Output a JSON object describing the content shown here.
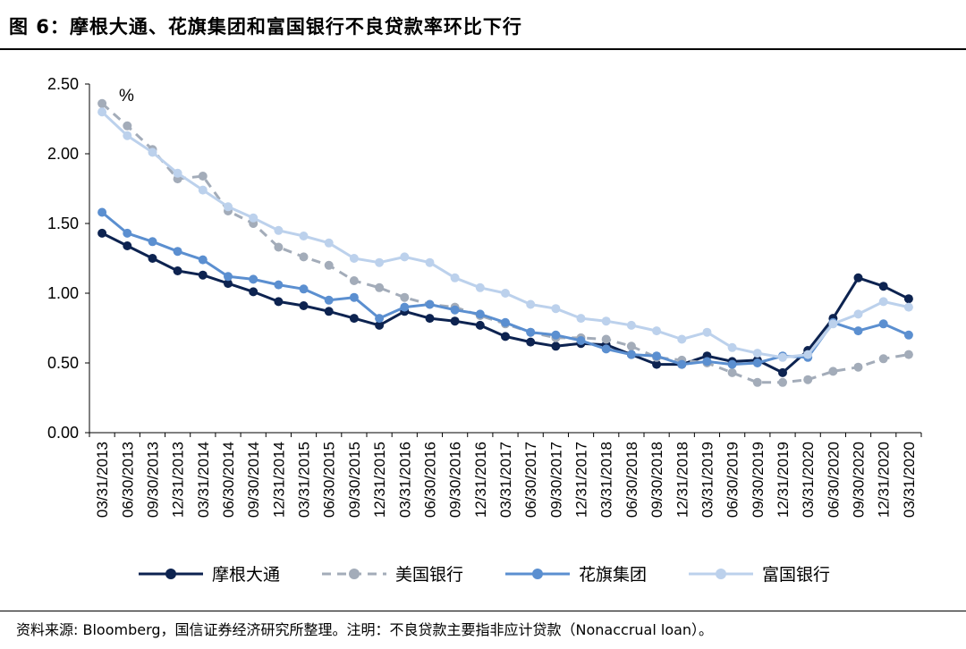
{
  "header": {
    "title": "图 6：摩根大通、花旗集团和富国银行不良贷款率环比下行"
  },
  "footer": {
    "source": "资料来源: Bloomberg，国信证券经济研究所整理。注明：不良贷款主要指非应计贷款（Nonaccrual loan）。"
  },
  "chart_data": {
    "type": "line",
    "unit_label": "%",
    "ylim": [
      0,
      2.5
    ],
    "yticks": [
      "0.00",
      "0.50",
      "1.00",
      "1.50",
      "2.00",
      "2.50"
    ],
    "grid": false,
    "legend_position": "bottom",
    "categories": [
      "03/31/2013",
      "06/30/2013",
      "09/30/2013",
      "12/31/2013",
      "03/31/2014",
      "06/30/2014",
      "09/30/2014",
      "12/31/2014",
      "03/31/2015",
      "06/30/2015",
      "09/30/2015",
      "12/31/2015",
      "03/31/2016",
      "06/30/2016",
      "09/30/2016",
      "12/31/2016",
      "03/31/2017",
      "06/30/2017",
      "09/30/2017",
      "12/31/2017",
      "03/31/2018",
      "06/30/2018",
      "09/30/2018",
      "12/31/2018",
      "03/31/2019",
      "06/30/2019",
      "09/30/2019",
      "12/31/2019",
      "03/31/2020",
      "06/30/2020",
      "09/30/2020",
      "12/31/2020",
      "03/31/2020"
    ],
    "series": [
      {
        "name": "摩根大通",
        "color": "#0d2350",
        "dashed": false,
        "values": [
          1.43,
          1.34,
          1.25,
          1.16,
          1.13,
          1.07,
          1.01,
          0.94,
          0.91,
          0.87,
          0.82,
          0.77,
          0.87,
          0.82,
          0.8,
          0.77,
          0.69,
          0.65,
          0.62,
          0.64,
          0.63,
          0.56,
          0.49,
          0.49,
          0.55,
          0.51,
          0.52,
          0.43,
          0.59,
          0.82,
          1.11,
          1.05,
          0.96
        ]
      },
      {
        "name": "美国银行",
        "color": "#a3acb9",
        "dashed": true,
        "values": [
          2.36,
          2.2,
          2.03,
          1.82,
          1.84,
          1.59,
          1.5,
          1.33,
          1.26,
          1.2,
          1.09,
          1.04,
          0.97,
          0.92,
          0.9,
          0.84,
          0.78,
          0.72,
          0.68,
          0.68,
          0.67,
          0.62,
          0.54,
          0.52,
          0.5,
          0.43,
          0.36,
          0.36,
          0.38,
          0.44,
          0.47,
          0.53,
          0.56
        ]
      },
      {
        "name": "花旗集团",
        "color": "#5b8fd0",
        "dashed": false,
        "values": [
          1.58,
          1.43,
          1.37,
          1.3,
          1.24,
          1.12,
          1.1,
          1.06,
          1.03,
          0.95,
          0.97,
          0.82,
          0.9,
          0.92,
          0.88,
          0.85,
          0.79,
          0.72,
          0.7,
          0.66,
          0.6,
          0.56,
          0.55,
          0.49,
          0.51,
          0.49,
          0.5,
          0.55,
          0.54,
          0.79,
          0.73,
          0.78,
          0.7
        ]
      },
      {
        "name": "富国银行",
        "color": "#bcd1ec",
        "dashed": false,
        "values": [
          2.3,
          2.13,
          2.01,
          1.86,
          1.74,
          1.62,
          1.54,
          1.45,
          1.41,
          1.36,
          1.25,
          1.22,
          1.26,
          1.22,
          1.11,
          1.04,
          1.0,
          0.92,
          0.89,
          0.82,
          0.8,
          0.77,
          0.73,
          0.67,
          0.72,
          0.61,
          0.57,
          0.54,
          0.56,
          0.78,
          0.85,
          0.94,
          0.9
        ]
      }
    ]
  }
}
